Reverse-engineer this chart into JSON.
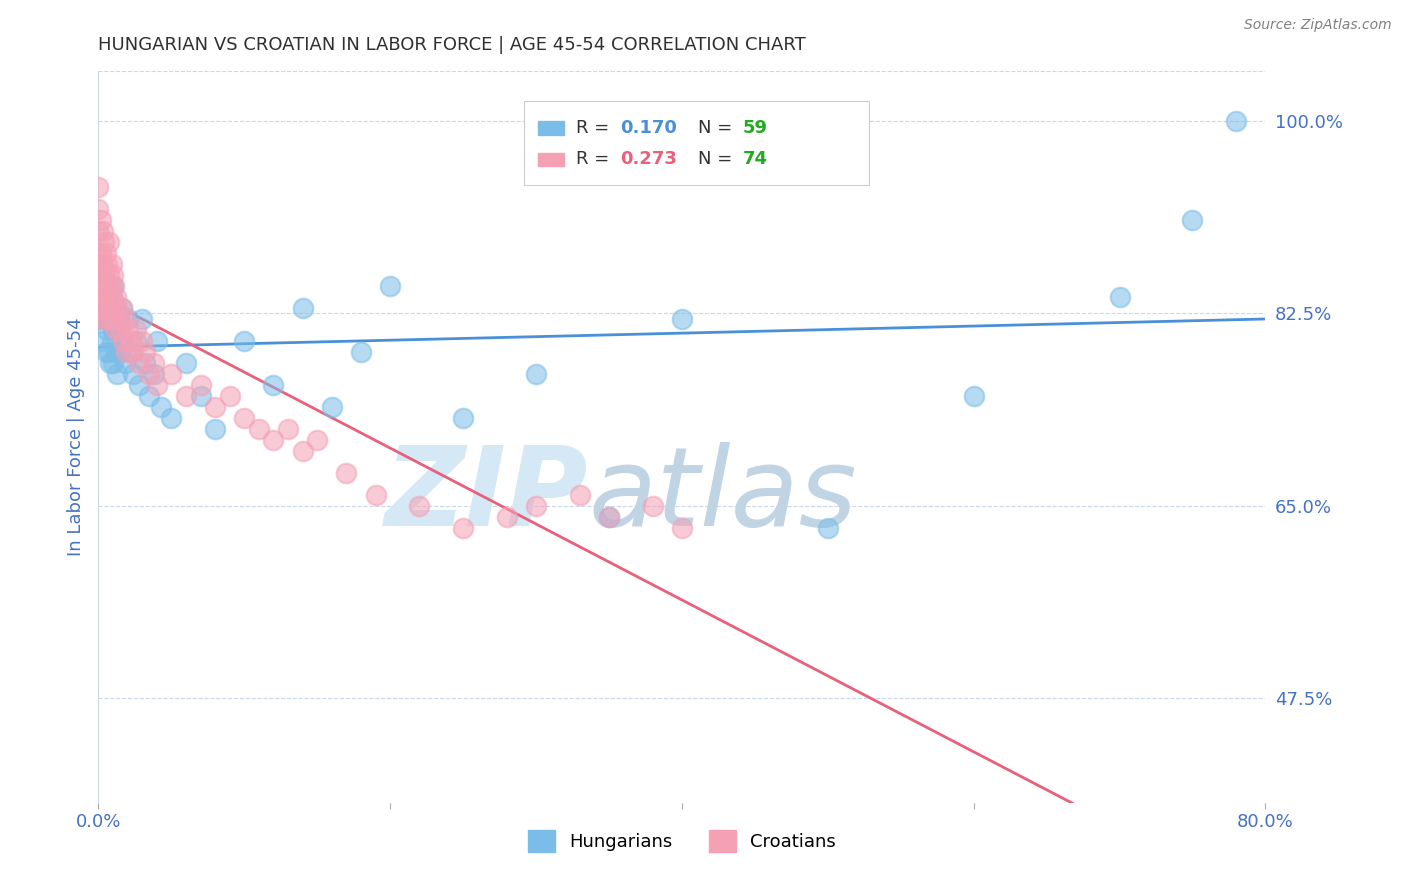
{
  "title": "HUNGARIAN VS CROATIAN IN LABOR FORCE | AGE 45-54 CORRELATION CHART",
  "source": "Source: ZipAtlas.com",
  "ylabel": "In Labor Force | Age 45-54",
  "xlim": [
    0.0,
    0.8
  ],
  "ylim": [
    0.38,
    1.045
  ],
  "yticks": [
    0.475,
    0.65,
    0.825,
    1.0
  ],
  "yticklabels": [
    "47.5%",
    "65.0%",
    "82.5%",
    "100.0%"
  ],
  "R_hungarian": 0.17,
  "N_hungarian": 59,
  "R_croatian": 0.273,
  "N_croatian": 74,
  "color_hungarian": "#7bbde8",
  "color_croatian": "#f4a0b5",
  "line_color_hungarian": "#4a90d9",
  "line_color_croatian": "#e8607a",
  "watermark_zip": "ZIP",
  "watermark_atlas": "atlas",
  "watermark_color": "#d8eaf8",
  "watermark_atlas_color": "#c8d8e8",
  "background_color": "#ffffff",
  "grid_color": "#c8d8e8",
  "title_color": "#303030",
  "axis_label_color": "#4472c4",
  "tick_color": "#4472c4",
  "hun_x": [
    0.0,
    0.0,
    0.0,
    0.003,
    0.003,
    0.004,
    0.005,
    0.005,
    0.006,
    0.006,
    0.007,
    0.007,
    0.008,
    0.008,
    0.009,
    0.009,
    0.01,
    0.01,
    0.01,
    0.011,
    0.012,
    0.012,
    0.013,
    0.013,
    0.014,
    0.015,
    0.016,
    0.017,
    0.018,
    0.02,
    0.022,
    0.024,
    0.026,
    0.028,
    0.03,
    0.032,
    0.035,
    0.038,
    0.04,
    0.043,
    0.05,
    0.06,
    0.07,
    0.08,
    0.1,
    0.12,
    0.14,
    0.16,
    0.18,
    0.2,
    0.25,
    0.3,
    0.35,
    0.4,
    0.5,
    0.6,
    0.7,
    0.75,
    0.78
  ],
  "hun_y": [
    0.82,
    0.84,
    0.87,
    0.8,
    0.83,
    0.86,
    0.79,
    0.82,
    0.81,
    0.84,
    0.79,
    0.83,
    0.78,
    0.82,
    0.8,
    0.84,
    0.78,
    0.81,
    0.85,
    0.82,
    0.79,
    0.83,
    0.77,
    0.81,
    0.82,
    0.79,
    0.83,
    0.8,
    0.78,
    0.82,
    0.79,
    0.77,
    0.8,
    0.76,
    0.82,
    0.78,
    0.75,
    0.77,
    0.8,
    0.74,
    0.73,
    0.78,
    0.75,
    0.72,
    0.8,
    0.76,
    0.83,
    0.74,
    0.79,
    0.85,
    0.73,
    0.77,
    0.64,
    0.82,
    0.63,
    0.75,
    0.84,
    0.91,
    1.0
  ],
  "cro_x": [
    0.0,
    0.0,
    0.0,
    0.0,
    0.0,
    0.0,
    0.0,
    0.001,
    0.001,
    0.002,
    0.002,
    0.002,
    0.003,
    0.003,
    0.003,
    0.004,
    0.004,
    0.004,
    0.005,
    0.005,
    0.005,
    0.006,
    0.006,
    0.007,
    0.007,
    0.007,
    0.008,
    0.008,
    0.009,
    0.009,
    0.01,
    0.01,
    0.011,
    0.011,
    0.012,
    0.012,
    0.013,
    0.014,
    0.015,
    0.016,
    0.017,
    0.018,
    0.019,
    0.02,
    0.022,
    0.024,
    0.026,
    0.028,
    0.03,
    0.032,
    0.035,
    0.038,
    0.04,
    0.05,
    0.06,
    0.07,
    0.08,
    0.09,
    0.1,
    0.11,
    0.12,
    0.13,
    0.14,
    0.15,
    0.17,
    0.19,
    0.22,
    0.25,
    0.28,
    0.3,
    0.33,
    0.35,
    0.38,
    0.4
  ],
  "cro_y": [
    0.82,
    0.84,
    0.86,
    0.88,
    0.9,
    0.92,
    0.94,
    0.83,
    0.87,
    0.85,
    0.88,
    0.91,
    0.84,
    0.87,
    0.9,
    0.83,
    0.86,
    0.89,
    0.82,
    0.85,
    0.88,
    0.84,
    0.87,
    0.83,
    0.86,
    0.89,
    0.82,
    0.85,
    0.84,
    0.87,
    0.83,
    0.86,
    0.82,
    0.85,
    0.81,
    0.84,
    0.83,
    0.82,
    0.81,
    0.83,
    0.8,
    0.82,
    0.79,
    0.81,
    0.8,
    0.79,
    0.81,
    0.78,
    0.8,
    0.79,
    0.77,
    0.78,
    0.76,
    0.77,
    0.75,
    0.76,
    0.74,
    0.75,
    0.73,
    0.72,
    0.71,
    0.72,
    0.7,
    0.71,
    0.68,
    0.66,
    0.65,
    0.63,
    0.64,
    0.65,
    0.66,
    0.64,
    0.65,
    0.63
  ]
}
